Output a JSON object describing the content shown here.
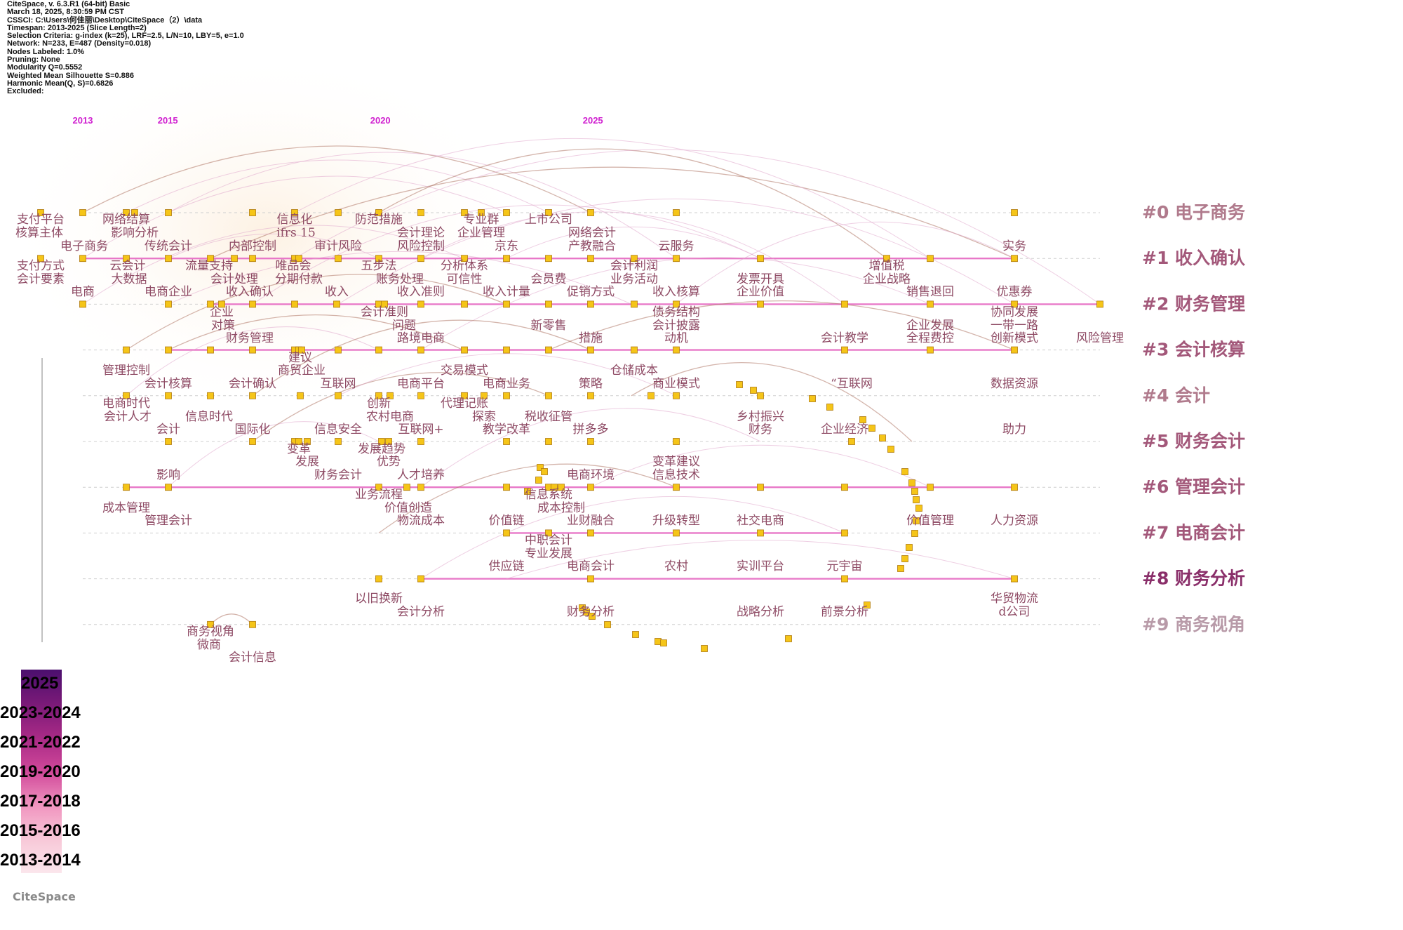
{
  "info": [
    "CiteSpace, v. 6.3.R1 (64-bit) Basic",
    "March 18, 2025, 8:30:59 PM CST",
    "CSSCI: C:\\Users\\何佳丽\\Desktop\\CiteSpace（2）\\data",
    "Timespan: 2013-2025 (Slice Length=2)",
    "Selection Criteria: g-index (k=25), LRF=2.5, L/N=10, LBY=5, e=1.0",
    "Network: N=233, E=487 (Density=0.018)",
    "Nodes Labeled: 1.0%",
    "Pruning: None",
    "Modularity Q=0.5552",
    "Weighted Mean Silhouette S=0.886",
    "Harmonic Mean(Q, S)=0.6826",
    "Excluded:"
  ],
  "years": [
    "2013",
    "2015",
    "2020",
    "2025"
  ],
  "clusters": [
    {
      "label": "#0 电子商务",
      "color": "#b07a8c"
    },
    {
      "label": "#1 收入确认",
      "color": "#a3587a"
    },
    {
      "label": "#2 财务管理",
      "color": "#a3587a"
    },
    {
      "label": "#3 会计核算",
      "color": "#a3587a"
    },
    {
      "label": "#4 会计",
      "color": "#b07a8c"
    },
    {
      "label": "#5 财务会计",
      "color": "#a3587a"
    },
    {
      "label": "#6 管理会计",
      "color": "#a3587a"
    },
    {
      "label": "#7 电商会计",
      "color": "#a3587a"
    },
    {
      "label": "#8 财务分析",
      "color": "#8a2f6a"
    },
    {
      "label": "#9 商务视角",
      "color": "#b89aa8"
    }
  ],
  "keywords": [
    [
      "支付平台",
      58,
      318
    ],
    [
      "核算主体",
      56,
      337
    ],
    [
      "网络结算",
      180,
      318
    ],
    [
      "影响分析",
      192,
      337
    ],
    [
      "信息化",
      420,
      318
    ],
    [
      "ifrs 15",
      422,
      337
    ],
    [
      "防范措施",
      540,
      318
    ],
    [
      "会计理论",
      600,
      337
    ],
    [
      "专业群",
      686,
      318
    ],
    [
      "企业管理",
      686,
      337
    ],
    [
      "上市公司",
      782,
      318
    ],
    [
      "网络会计",
      844,
      337
    ],
    [
      "电子商务",
      120,
      356
    ],
    [
      "传统会计",
      240,
      356
    ],
    [
      "内部控制",
      360,
      356
    ],
    [
      "审计风险",
      482,
      356
    ],
    [
      "风险控制",
      600,
      356
    ],
    [
      "京东",
      722,
      356
    ],
    [
      "产教融合",
      844,
      356
    ],
    [
      "云服务",
      964,
      356
    ],
    [
      "实务",
      1446,
      356
    ],
    [
      "支付方式",
      58,
      384
    ],
    [
      "会计要素",
      58,
      403
    ],
    [
      "云会计",
      182,
      384
    ],
    [
      "大数据",
      184,
      403
    ],
    [
      "流量支持",
      298,
      384
    ],
    [
      "会计处理",
      334,
      403
    ],
    [
      "唯品会",
      418,
      384
    ],
    [
      "分期付款",
      426,
      403
    ],
    [
      "五步法",
      540,
      384
    ],
    [
      "账务处理",
      570,
      403
    ],
    [
      "分析体系",
      662,
      384
    ],
    [
      "可信性",
      662,
      403
    ],
    [
      "会员费",
      782,
      403
    ],
    [
      "会计利润",
      904,
      384
    ],
    [
      "业务活动",
      904,
      403
    ],
    [
      "发票开具",
      1084,
      403
    ],
    [
      "增值税",
      1264,
      384
    ],
    [
      "企业战略",
      1264,
      403
    ],
    [
      "电商",
      118,
      421
    ],
    [
      "电商企业",
      240,
      421
    ],
    [
      "收入确认",
      356,
      421
    ],
    [
      "收入",
      480,
      421
    ],
    [
      "收入准则",
      600,
      421
    ],
    [
      "收入计量",
      722,
      421
    ],
    [
      "促销方式",
      842,
      421
    ],
    [
      "收入核算",
      964,
      421
    ],
    [
      "企业价值",
      1084,
      421
    ],
    [
      "销售退回",
      1326,
      421
    ],
    [
      "优惠券",
      1446,
      421
    ],
    [
      "企业",
      316,
      450
    ],
    [
      "对策",
      318,
      469
    ],
    [
      "会计准则",
      548,
      450
    ],
    [
      "问题",
      576,
      469
    ],
    [
      "新零售",
      782,
      469
    ],
    [
      "债务结构",
      964,
      450
    ],
    [
      "会计披露",
      964,
      469
    ],
    [
      "协同发展",
      1446,
      450
    ],
    [
      "企业发展",
      1326,
      469
    ],
    [
      "一带一路",
      1446,
      469
    ],
    [
      "财务管理",
      356,
      487
    ],
    [
      "路境电商",
      600,
      487
    ],
    [
      "措施",
      842,
      487
    ],
    [
      "动机",
      964,
      487
    ],
    [
      "会计教学",
      1204,
      487
    ],
    [
      "全程费控",
      1326,
      487
    ],
    [
      "创新模式",
      1446,
      487
    ],
    [
      "风险管理",
      1568,
      487
    ],
    [
      "建议",
      428,
      515
    ],
    [
      "管理控制",
      180,
      533
    ],
    [
      "商贸企业",
      430,
      533
    ],
    [
      "交易模式",
      662,
      533
    ],
    [
      "仓储成本",
      904,
      533
    ],
    [
      "会计核算",
      240,
      552
    ],
    [
      "会计确认",
      360,
      552
    ],
    [
      "互联网",
      482,
      552
    ],
    [
      "电商平台",
      600,
      552
    ],
    [
      "电商业务",
      722,
      552
    ],
    [
      "策略",
      842,
      552
    ],
    [
      "商业模式",
      964,
      552
    ],
    [
      "“互联网",
      1214,
      552
    ],
    [
      "数据资源",
      1446,
      552
    ],
    [
      "电商时代",
      180,
      580
    ],
    [
      "会计人才",
      182,
      599
    ],
    [
      "信息时代",
      298,
      599
    ],
    [
      "创新",
      540,
      580
    ],
    [
      "农村电商",
      556,
      599
    ],
    [
      "代理记账",
      662,
      580
    ],
    [
      "探索",
      690,
      599
    ],
    [
      "税收征管",
      782,
      599
    ],
    [
      "乡村振兴",
      1084,
      599
    ],
    [
      "会计",
      240,
      617
    ],
    [
      "国际化",
      360,
      617
    ],
    [
      "信息安全",
      482,
      617
    ],
    [
      "互联网+",
      600,
      617
    ],
    [
      "教学改革",
      722,
      617
    ],
    [
      "拼多多",
      842,
      617
    ],
    [
      "财务",
      1084,
      617
    ],
    [
      "企业经济",
      1204,
      617
    ],
    [
      "助力",
      1446,
      617
    ],
    [
      "变革",
      426,
      645
    ],
    [
      "优势",
      554,
      663
    ],
    [
      "发展趋势",
      544,
      645
    ],
    [
      "发展",
      438,
      663
    ],
    [
      "变革建议",
      964,
      663
    ],
    [
      "信息技术",
      964,
      682
    ],
    [
      "影响",
      240,
      682
    ],
    [
      "财务会计",
      482,
      682
    ],
    [
      "人才培养",
      600,
      682
    ],
    [
      "电商环境",
      842,
      682
    ],
    [
      "业务流程",
      540,
      710
    ],
    [
      "信息系统",
      782,
      710
    ],
    [
      "价值创造",
      582,
      729
    ],
    [
      "成本控制",
      800,
      729
    ],
    [
      "成本管理",
      180,
      729
    ],
    [
      "管理会计",
      240,
      747
    ],
    [
      "物流成本",
      600,
      747
    ],
    [
      "价值链",
      722,
      747
    ],
    [
      "业财融合",
      842,
      747
    ],
    [
      "升级转型",
      964,
      747
    ],
    [
      "社交电商",
      1084,
      747
    ],
    [
      "价值管理",
      1326,
      747
    ],
    [
      "人力资源",
      1446,
      747
    ],
    [
      "中职会计",
      782,
      775
    ],
    [
      "专业发展",
      782,
      794
    ],
    [
      "供应链",
      722,
      812
    ],
    [
      "电商会计",
      842,
      812
    ],
    [
      "农村",
      964,
      812
    ],
    [
      "实训平台",
      1084,
      812
    ],
    [
      "元宇宙",
      1204,
      812
    ],
    [
      "以旧换新",
      540,
      858
    ],
    [
      "会计分析",
      600,
      877
    ],
    [
      "财务分析",
      842,
      877
    ],
    [
      "战略分析",
      1084,
      877
    ],
    [
      "前景分析",
      1204,
      877
    ],
    [
      "华贸物流",
      1446,
      858
    ],
    [
      "d公司",
      1446,
      877
    ],
    [
      "商务视角",
      300,
      905
    ],
    [
      "微商",
      298,
      924
    ],
    [
      "会计信息",
      360,
      942
    ]
  ],
  "legend": [
    "2025",
    "2023-2024",
    "2021-2022",
    "2019-2020",
    "2017-2018",
    "2015-2016",
    "2013-2014"
  ],
  "legend_colors": [
    "#4b0f6e",
    "#7a1a78",
    "#a82a86",
    "#d0489a",
    "#f094bf",
    "#f8c8d8",
    "#fbe6ec"
  ],
  "logo": "CiteSpace"
}
